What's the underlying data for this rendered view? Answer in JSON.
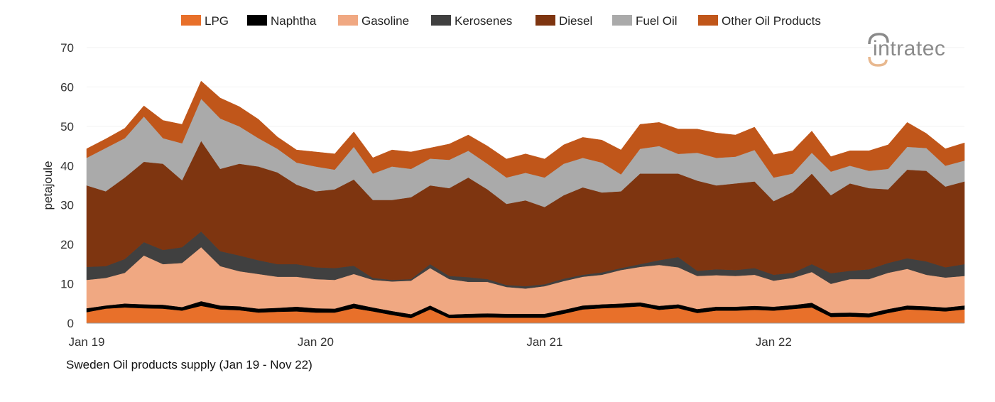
{
  "chart_data": {
    "type": "area",
    "stacked": true,
    "title": "",
    "caption": "Sweden Oil products supply (Jan 19 - Nov 22)",
    "xlabel": "",
    "ylabel": "petajoule",
    "ylim": [
      0,
      70
    ],
    "yticks": [
      "0",
      "10",
      "20",
      "30",
      "40",
      "50",
      "60",
      "70"
    ],
    "xtick_labels": [
      "Jan 19",
      "Jan 20",
      "Jan 21",
      "Jan 22"
    ],
    "x": [
      "Jan 19",
      "Feb 19",
      "Mar 19",
      "Apr 19",
      "May 19",
      "Jun 19",
      "Jul 19",
      "Aug 19",
      "Sep 19",
      "Oct 19",
      "Nov 19",
      "Dec 19",
      "Jan 20",
      "Feb 20",
      "Mar 20",
      "Apr 20",
      "May 20",
      "Jun 20",
      "Jul 20",
      "Aug 20",
      "Sep 20",
      "Oct 20",
      "Nov 20",
      "Dec 20",
      "Jan 21",
      "Feb 21",
      "Mar 21",
      "Apr 21",
      "May 21",
      "Jun 21",
      "Jul 21",
      "Aug 21",
      "Sep 21",
      "Oct 21",
      "Nov 21",
      "Dec 21",
      "Jan 22",
      "Feb 22",
      "Mar 22",
      "Apr 22",
      "May 22",
      "Jun 22",
      "Jul 22",
      "Aug 22",
      "Sep 22",
      "Oct 22",
      "Nov 22"
    ],
    "grid": true,
    "legend_position": "top",
    "series": [
      {
        "name": "LPG",
        "color": "#e8702a",
        "values": [
          2.8,
          3.7,
          4.0,
          3.8,
          3.7,
          3.2,
          4.4,
          3.5,
          3.3,
          2.7,
          2.9,
          3.0,
          2.7,
          2.7,
          3.8,
          3.0,
          2.1,
          1.3,
          3.5,
          1.3,
          1.4,
          1.5,
          1.4,
          1.4,
          1.4,
          2.4,
          3.5,
          3.8,
          4.0,
          4.3,
          3.4,
          3.8,
          2.6,
          3.2,
          3.2,
          3.4,
          3.2,
          3.6,
          4.0,
          1.6,
          1.7,
          1.5,
          2.6,
          3.5,
          3.3,
          3.0,
          3.5
        ]
      },
      {
        "name": "Naphtha",
        "color": "#000000",
        "values": [
          1.0,
          0.8,
          1.0,
          1.0,
          1.0,
          0.9,
          1.2,
          1.0,
          1.0,
          1.0,
          1.0,
          1.2,
          1.1,
          1.0,
          1.2,
          1.0,
          1.0,
          1.0,
          1.0,
          0.9,
          1.0,
          1.0,
          1.0,
          1.0,
          1.0,
          1.0,
          1.0,
          1.0,
          1.0,
          1.0,
          1.0,
          1.0,
          1.0,
          1.0,
          1.0,
          1.0,
          1.0,
          1.0,
          1.2,
          1.0,
          1.0,
          1.0,
          1.0,
          1.0,
          1.0,
          1.0,
          1.0
        ]
      },
      {
        "name": "Gasoline",
        "color": "#f0a882",
        "values": [
          7.2,
          7.0,
          7.8,
          12.4,
          10.3,
          11.2,
          13.7,
          10.0,
          8.9,
          8.8,
          7.9,
          7.6,
          7.4,
          7.3,
          7.5,
          7.0,
          7.5,
          8.5,
          9.5,
          9.0,
          8.1,
          8.0,
          6.8,
          6.4,
          7.0,
          7.3,
          7.3,
          7.5,
          8.5,
          9.0,
          10.4,
          9.4,
          8.4,
          8.0,
          7.8,
          7.9,
          6.6,
          6.9,
          7.8,
          7.4,
          8.5,
          8.7,
          9.2,
          9.3,
          8.0,
          7.6,
          7.5
        ]
      },
      {
        "name": "Kerosenes",
        "color": "#404040",
        "values": [
          3.3,
          3.0,
          3.5,
          3.4,
          3.6,
          4.0,
          4.0,
          3.8,
          4.0,
          3.5,
          3.2,
          3.2,
          3.0,
          3.0,
          2.1,
          0.5,
          0.4,
          0.4,
          1.0,
          0.8,
          1.2,
          0.7,
          0.5,
          0.6,
          0.5,
          0.6,
          0.5,
          0.6,
          0.5,
          0.7,
          1.2,
          2.6,
          1.3,
          1.5,
          1.5,
          1.7,
          1.5,
          1.3,
          2.0,
          2.7,
          2.1,
          2.5,
          2.5,
          2.7,
          3.4,
          2.6,
          3.0
        ]
      },
      {
        "name": "Diesel",
        "color": "#7e3510",
        "values": [
          20.7,
          19.0,
          20.7,
          20.4,
          21.9,
          17.0,
          23.0,
          20.9,
          23.3,
          23.8,
          23.3,
          20.2,
          19.3,
          20.0,
          21.9,
          19.8,
          20.3,
          20.8,
          20.0,
          22.3,
          25.3,
          22.8,
          20.6,
          21.8,
          19.6,
          21.2,
          22.2,
          20.3,
          19.5,
          23.0,
          22.0,
          21.2,
          22.9,
          21.3,
          22.0,
          22.0,
          18.7,
          20.5,
          23.0,
          19.8,
          22.2,
          20.6,
          18.7,
          22.5,
          23.0,
          20.5,
          21.0
        ]
      },
      {
        "name": "Fuel Oil",
        "color": "#aaaaaa",
        "values": [
          7.0,
          11.0,
          10.0,
          11.5,
          6.5,
          9.4,
          10.7,
          12.8,
          9.5,
          7.2,
          6.0,
          5.6,
          6.3,
          5.0,
          8.3,
          6.7,
          8.5,
          7.2,
          6.8,
          7.2,
          6.8,
          6.5,
          6.7,
          7.0,
          7.5,
          8.0,
          7.5,
          7.6,
          4.3,
          6.3,
          7.0,
          5.0,
          7.1,
          7.0,
          6.8,
          8.0,
          6.0,
          4.7,
          5.3,
          6.0,
          4.5,
          4.4,
          5.2,
          5.8,
          5.8,
          5.3,
          5.3
        ]
      },
      {
        "name": "Other Oil Products",
        "color": "#c0561a",
        "values": [
          2.3,
          2.3,
          2.5,
          2.7,
          4.5,
          4.8,
          4.5,
          5.2,
          5.0,
          4.8,
          3.0,
          3.2,
          3.7,
          4.0,
          3.8,
          4.0,
          4.2,
          4.3,
          2.7,
          4.0,
          4.0,
          4.5,
          4.7,
          4.8,
          4.7,
          4.8,
          5.2,
          5.7,
          6.2,
          6.2,
          6.0,
          6.3,
          6.0,
          6.3,
          5.5,
          5.8,
          5.8,
          5.8,
          5.5,
          3.8,
          3.8,
          5.1,
          6.1,
          6.2,
          3.7,
          4.3,
          4.5
        ]
      }
    ]
  },
  "logo": {
    "text": "intratec",
    "color": "#8a8a8a",
    "accent": "#e8b88f"
  }
}
